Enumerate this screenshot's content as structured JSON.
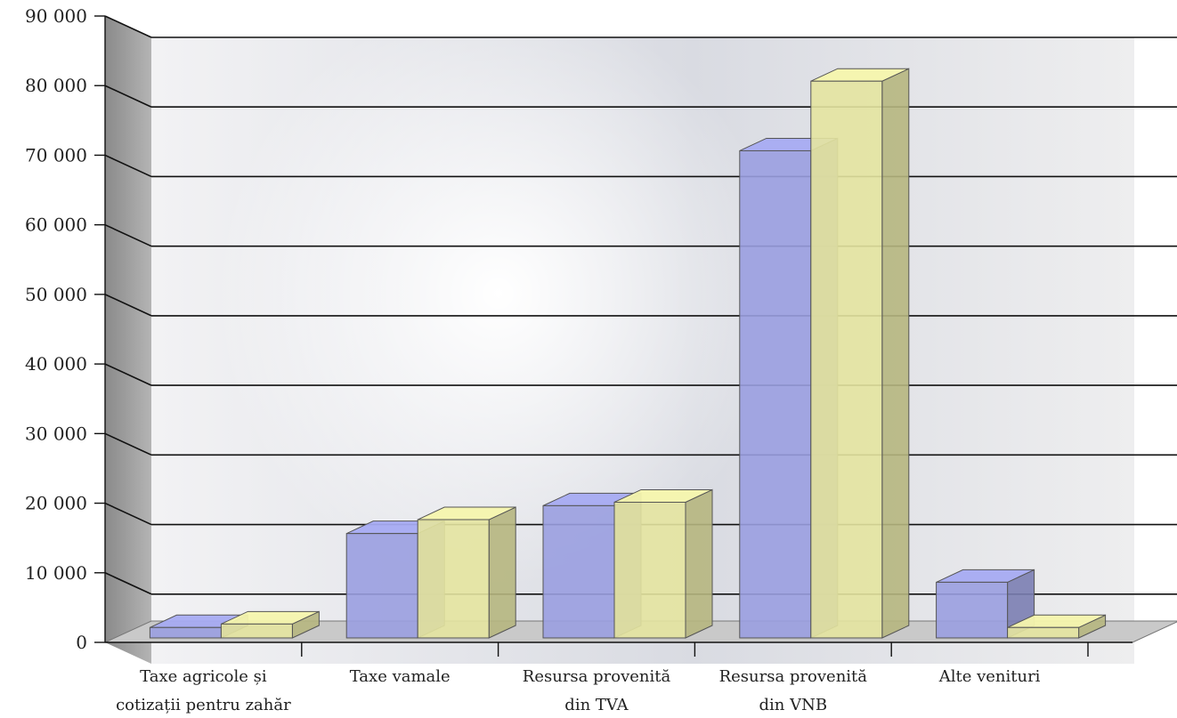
{
  "chart_data": {
    "type": "bar",
    "categories": [
      [
        "Taxe agricole și",
        "cotizații pentru zahăr"
      ],
      [
        "Taxe vamale"
      ],
      [
        "Resursa provenită",
        "din TVA"
      ],
      [
        "Resursa provenită",
        "din VNB"
      ],
      [
        "Alte venituri"
      ]
    ],
    "series": [
      {
        "values": [
          1500,
          15000,
          19000,
          70000,
          8000
        ],
        "color": "#9a9ee0"
      },
      {
        "values": [
          2000,
          17000,
          19500,
          80000,
          1500
        ],
        "color": "#e4e4a0"
      }
    ],
    "yticks": [
      "0",
      "10 000",
      "20 000",
      "30 000",
      "40 000",
      "50 000",
      "60 000",
      "70 000",
      "80 000",
      "90 000"
    ],
    "ylim": [
      0,
      90000
    ],
    "grid": true,
    "legend": "none",
    "style": "3d"
  }
}
